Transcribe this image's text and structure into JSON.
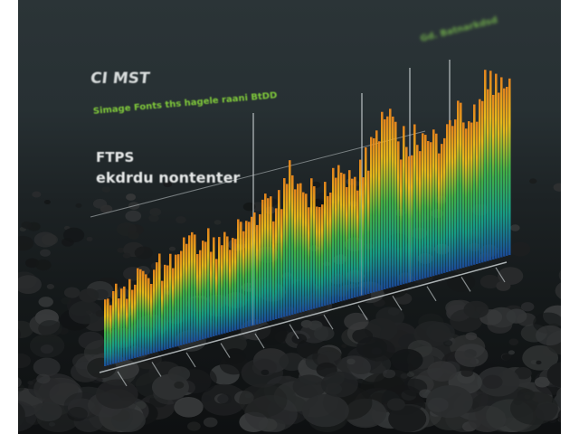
{
  "labels": {
    "corner_mark": "CI MST",
    "green_caption": "Simage Fonts ths hagele raani BtDD",
    "heading_line1": "FTPS",
    "heading_line2": "ekdrdu nontenter",
    "top_right_caption": "Gd. Batnarkdsd"
  },
  "bar_levels": [
    0.55,
    0.6,
    0.5,
    0.62,
    0.58,
    0.7,
    0.55,
    0.75,
    0.8,
    0.65,
    0.7,
    0.6,
    0.62,
    0.66,
    0.58,
    0.85,
    0.7,
    0.78,
    0.95,
    0.74,
    0.72,
    0.68,
    0.8,
    0.7,
    0.66,
    0.72,
    0.9,
    1.0,
    0.82,
    0.76,
    0.78,
    0.7,
    0.68,
    0.84,
    0.78,
    0.76,
    0.72,
    0.95,
    0.9,
    0.82
  ],
  "colors": {
    "bar_top": "#f08a1c",
    "bar_upper": "#f2c21a",
    "bar_mid": "#43b94a",
    "bar_low": "#17a58a",
    "bar_base": "#1a4e9e"
  }
}
